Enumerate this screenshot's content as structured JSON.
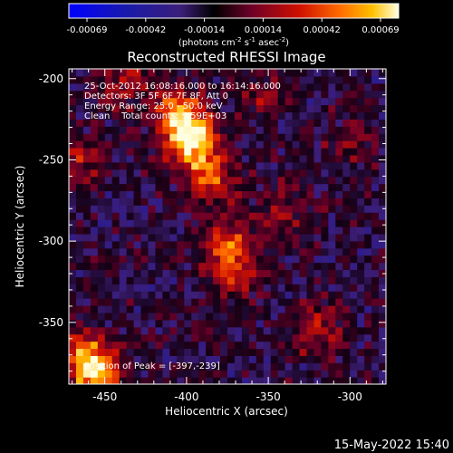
{
  "chart_data": {
    "type": "heatmap",
    "title": "Reconstructed RHESSI Image",
    "xlabel": "Heliocentric X (arcsec)",
    "ylabel": "Heliocentric Y (arcsec)",
    "xlim": [
      -472,
      -278
    ],
    "ylim": [
      -388,
      -194
    ],
    "x_ticks": [
      "-450",
      "-400",
      "-350",
      "-300"
    ],
    "y_ticks": [
      "-200",
      "-250",
      "-300",
      "-350"
    ],
    "colorbar": {
      "ticks": [
        "-0.00069",
        "-0.00042",
        "-0.00014",
        "0.00014",
        "0.00042",
        "0.00069"
      ],
      "units": "(photons cm",
      "units_exp1": "-2",
      "units_mid": " s",
      "units_exp2": "-1",
      "units_end": " asec",
      "units_exp3": "-2",
      "units_close": ")",
      "range": [
        -0.00069,
        0.00069
      ]
    },
    "annotations": {
      "time": "25-Oct-2012 16:08:16.000 to 16:14:16.000",
      "detectors": "Detectors: 3F 5F 6F 7F 8F, Att 0",
      "energy": "Energy Range: 25.0 - 50.0 keV",
      "clean": "Clean    Total counts: 9.59E+03",
      "peak": "Position of Peak = [-397,-239]"
    },
    "footer_date": "15-May-2022 15:40",
    "hotspots": [
      {
        "x": -397,
        "y": -239,
        "value": 0.00069
      },
      {
        "x": -405,
        "y": -222,
        "value": 0.00062
      },
      {
        "x": -385,
        "y": -260,
        "value": 0.00045
      },
      {
        "x": -375,
        "y": -300,
        "value": 0.0004
      },
      {
        "x": -370,
        "y": -320,
        "value": 0.00036
      },
      {
        "x": -462,
        "y": -370,
        "value": 0.00058
      },
      {
        "x": -455,
        "y": -385,
        "value": 0.00052
      },
      {
        "x": -440,
        "y": -200,
        "value": 0.0003
      },
      {
        "x": -465,
        "y": -250,
        "value": 0.00028
      },
      {
        "x": -320,
        "y": -355,
        "value": 0.0003
      },
      {
        "x": -340,
        "y": -280,
        "value": 0.00024
      },
      {
        "x": -300,
        "y": -240,
        "value": 0.00018
      },
      {
        "x": -355,
        "y": -210,
        "value": 0.0002
      }
    ]
  }
}
